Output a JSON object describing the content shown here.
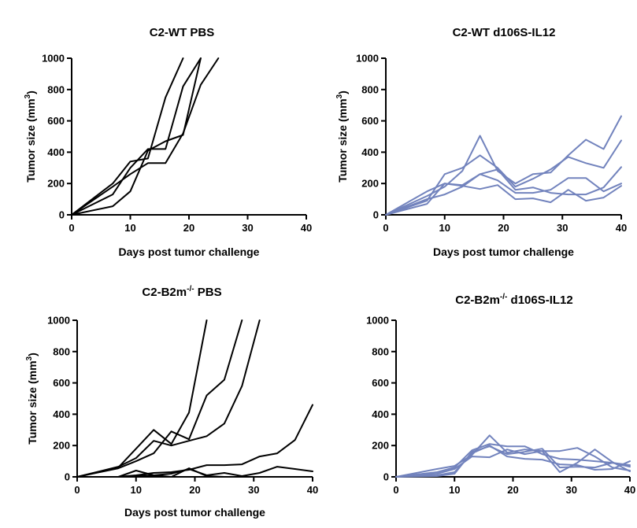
{
  "chart_data": [
    {
      "type": "line",
      "title": "C2-WT PBS",
      "xlabel": "Days post tumor challenge",
      "ylabel": "Tumor size (mm3)",
      "xlim": [
        0,
        40
      ],
      "ylim": [
        0,
        1000
      ],
      "xticks": [
        0,
        10,
        20,
        30,
        40
      ],
      "yticks": [
        0,
        200,
        400,
        600,
        800,
        1000
      ],
      "color": "#000000",
      "series": [
        {
          "x": [
            0,
            7,
            10,
            13,
            16,
            19
          ],
          "y": [
            0,
            200,
            340,
            360,
            750,
            1000
          ]
        },
        {
          "x": [
            0,
            7,
            10,
            13,
            16,
            19,
            22
          ],
          "y": [
            0,
            130,
            300,
            420,
            420,
            820,
            1000
          ]
        },
        {
          "x": [
            0,
            7,
            10,
            13,
            16,
            19,
            22
          ],
          "y": [
            0,
            55,
            150,
            410,
            470,
            510,
            1000
          ]
        },
        {
          "x": [
            0,
            7,
            10,
            13,
            16,
            19,
            22,
            25
          ],
          "y": [
            0,
            180,
            260,
            330,
            330,
            520,
            830,
            1000
          ]
        }
      ]
    },
    {
      "type": "line",
      "title": "C2-WT d106S-IL12",
      "xlabel": "Days post tumor challenge",
      "ylabel": "Tumor size (mm3)",
      "xlim": [
        0,
        40
      ],
      "ylim": [
        0,
        1000
      ],
      "xticks": [
        0,
        10,
        20,
        30,
        40
      ],
      "yticks": [
        0,
        200,
        400,
        600,
        800,
        1000
      ],
      "color": "#7283bd",
      "series": [
        {
          "x": [
            0,
            7,
            10,
            13,
            16,
            19,
            22,
            25,
            28,
            31,
            34,
            37,
            40
          ],
          "y": [
            0,
            120,
            180,
            280,
            505,
            280,
            200,
            260,
            270,
            380,
            480,
            420,
            630
          ]
        },
        {
          "x": [
            0,
            7,
            10,
            13,
            16,
            19,
            22,
            25,
            28,
            31,
            34,
            37,
            40
          ],
          "y": [
            0,
            90,
            260,
            300,
            380,
            300,
            180,
            230,
            290,
            370,
            330,
            300,
            475
          ]
        },
        {
          "x": [
            0,
            7,
            10,
            13,
            16,
            19,
            22,
            25,
            28,
            31,
            34,
            37,
            40
          ],
          "y": [
            0,
            150,
            200,
            190,
            260,
            290,
            160,
            175,
            140,
            130,
            130,
            175,
            305
          ]
        },
        {
          "x": [
            0,
            7,
            10,
            13,
            16,
            19,
            22,
            25,
            28,
            31,
            34,
            37,
            40
          ],
          "y": [
            0,
            100,
            130,
            180,
            260,
            220,
            140,
            140,
            160,
            235,
            235,
            150,
            200
          ]
        },
        {
          "x": [
            0,
            7,
            10,
            13,
            16,
            19,
            22,
            25,
            28,
            31,
            34,
            37,
            40
          ],
          "y": [
            0,
            70,
            200,
            185,
            165,
            190,
            100,
            105,
            80,
            160,
            90,
            110,
            185
          ]
        }
      ]
    },
    {
      "type": "line",
      "title": "C2-B2m-/- PBS",
      "title_base": "C2-B2m",
      "title_sup": "-/-",
      "title_rest": " PBS",
      "xlabel": "Days post tumor challenge",
      "ylabel": "Tumor size (mm3)",
      "xlim": [
        0,
        40
      ],
      "ylim": [
        0,
        1000
      ],
      "xticks": [
        0,
        10,
        20,
        30,
        40
      ],
      "yticks": [
        0,
        200,
        400,
        600,
        800,
        1000
      ],
      "color": "#000000",
      "series": [
        {
          "x": [
            0,
            7,
            10,
            13,
            16,
            19,
            22
          ],
          "y": [
            0,
            60,
            180,
            300,
            210,
            410,
            1000
          ]
        },
        {
          "x": [
            0,
            7,
            10,
            13,
            16,
            19,
            22,
            25,
            28
          ],
          "y": [
            0,
            55,
            100,
            150,
            290,
            240,
            520,
            620,
            1000
          ]
        },
        {
          "x": [
            0,
            7,
            10,
            13,
            16,
            19,
            22,
            25,
            28,
            31
          ],
          "y": [
            0,
            65,
            120,
            230,
            200,
            230,
            260,
            340,
            580,
            1000
          ]
        },
        {
          "x": [
            0,
            7,
            10,
            13,
            16,
            19,
            22,
            25,
            28,
            31,
            34,
            37,
            40
          ],
          "y": [
            0,
            0,
            10,
            25,
            30,
            45,
            75,
            75,
            80,
            130,
            150,
            235,
            460
          ]
        },
        {
          "x": [
            0,
            7,
            10,
            13,
            16,
            19,
            22,
            25,
            28,
            31,
            34,
            37,
            40
          ],
          "y": [
            0,
            0,
            5,
            10,
            20,
            50,
            10,
            25,
            5,
            25,
            65,
            50,
            35
          ]
        },
        {
          "x": [
            0,
            7,
            10,
            13,
            16,
            19,
            22,
            25,
            28,
            31
          ],
          "y": [
            0,
            0,
            40,
            10,
            0,
            55,
            5,
            0,
            0,
            0
          ]
        }
      ]
    },
    {
      "type": "line",
      "title": "C2-B2m-/- d106S-IL12",
      "title_base": "C2-B2m",
      "title_sup": "-/-",
      "title_rest": " d106S-IL12",
      "xlabel": "",
      "ylabel": "",
      "xlim": [
        0,
        40
      ],
      "ylim": [
        0,
        1000
      ],
      "xticks": [
        0,
        10,
        20,
        30,
        40
      ],
      "yticks": [
        0,
        200,
        400,
        600,
        800,
        1000
      ],
      "color": "#7283bd",
      "series": [
        {
          "x": [
            0,
            7,
            10,
            13,
            16,
            19,
            22,
            25,
            28,
            31,
            34,
            37,
            40
          ],
          "y": [
            0,
            50,
            70,
            140,
            265,
            155,
            175,
            165,
            165,
            185,
            130,
            60,
            40
          ]
        },
        {
          "x": [
            0,
            7,
            10,
            13,
            16,
            19,
            22,
            25,
            28,
            31,
            34,
            37,
            40
          ],
          "y": [
            0,
            30,
            60,
            170,
            210,
            195,
            195,
            145,
            115,
            110,
            100,
            90,
            75
          ]
        },
        {
          "x": [
            0,
            7,
            10,
            13,
            16,
            19,
            22,
            25,
            28,
            31,
            34,
            37,
            40
          ],
          "y": [
            0,
            20,
            50,
            130,
            125,
            175,
            145,
            165,
            30,
            90,
            175,
            95,
            35
          ]
        },
        {
          "x": [
            0,
            7,
            10,
            13,
            16,
            19,
            22,
            25,
            28,
            31,
            34,
            37,
            40
          ],
          "y": [
            0,
            10,
            30,
            150,
            200,
            130,
            115,
            110,
            80,
            75,
            45,
            50,
            100
          ]
        },
        {
          "x": [
            0,
            7,
            10,
            13,
            16,
            19,
            22,
            25,
            28,
            31,
            34,
            37,
            40
          ],
          "y": [
            0,
            5,
            20,
            160,
            195,
            145,
            160,
            180,
            60,
            65,
            60,
            90,
            65
          ]
        }
      ]
    }
  ]
}
